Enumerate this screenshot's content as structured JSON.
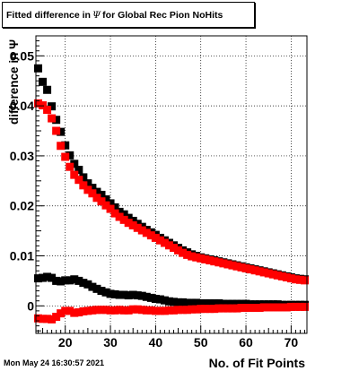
{
  "title_text": "Fitted difference in",
  "title_symbol": "Ψ",
  "title_suffix": "for Global Rec Pion NoHits",
  "timestamp": "Mon May 24 16:30:57 2021",
  "colors": {
    "black_series": "#000000",
    "red_series": "#ff0000",
    "grid": "#000000",
    "background": "#ffffff"
  },
  "chart_data": {
    "type": "scatter",
    "title": "Fitted difference in Ψ for Global Rec Pion NoHits",
    "xlabel": "No. of Fit Points",
    "ylabel": "difference in Ψ",
    "xlim": [
      13.5,
      73.5
    ],
    "ylim": [
      -0.0055,
      0.054
    ],
    "xticks": [
      20,
      30,
      40,
      50,
      60,
      70
    ],
    "xtick_labels": [
      "20",
      "30",
      "40",
      "50",
      "60",
      "70"
    ],
    "yticks": [
      0,
      0.01,
      0.02,
      0.03,
      0.04,
      0.05
    ],
    "ytick_labels": [
      "0",
      "0.01",
      "0.02",
      "0.03",
      "0.04",
      "0.05"
    ],
    "grid": true,
    "x": [
      14,
      15,
      16,
      17,
      18,
      19,
      20,
      21,
      22,
      23,
      24,
      25,
      26,
      27,
      28,
      29,
      30,
      31,
      32,
      33,
      34,
      35,
      36,
      37,
      38,
      39,
      40,
      41,
      42,
      43,
      44,
      45,
      46,
      47,
      48,
      49,
      50,
      51,
      52,
      53,
      54,
      55,
      56,
      57,
      58,
      59,
      60,
      61,
      62,
      63,
      64,
      65,
      66,
      67,
      68,
      69,
      70,
      71,
      72,
      73
    ],
    "series": [
      {
        "color": "#000000",
        "values": [
          0.0475,
          0.0448,
          0.0432,
          0.0399,
          0.0372,
          0.0348,
          0.0321,
          0.0301,
          0.0284,
          0.0272,
          0.0257,
          0.0245,
          0.0236,
          0.0228,
          0.0222,
          0.0213,
          0.0205,
          0.0197,
          0.0188,
          0.0183,
          0.0176,
          0.017,
          0.0164,
          0.0158,
          0.0152,
          0.0147,
          0.0142,
          0.0136,
          0.0131,
          0.0126,
          0.0121,
          0.0116,
          0.0111,
          0.0107,
          0.0103,
          0.01,
          0.0097,
          0.0095,
          0.0093,
          0.0091,
          0.0089,
          0.0087,
          0.0085,
          0.0083,
          0.0081,
          0.0079,
          0.0077,
          0.0075,
          0.0073,
          0.0071,
          0.0069,
          0.0067,
          0.0065,
          0.0063,
          0.0061,
          0.0059,
          0.0057,
          0.0055,
          0.0054,
          0.0053
        ]
      },
      {
        "color": "#ff0000",
        "values": [
          0.0405,
          0.0401,
          0.0392,
          0.0375,
          0.035,
          0.032,
          0.0298,
          0.0278,
          0.0262,
          0.0252,
          0.0241,
          0.0232,
          0.0225,
          0.0216,
          0.0209,
          0.0201,
          0.0194,
          0.0185,
          0.0178,
          0.0172,
          0.0166,
          0.0161,
          0.0156,
          0.0151,
          0.0146,
          0.0141,
          0.0136,
          0.0131,
          0.0126,
          0.0121,
          0.0116,
          0.0111,
          0.0106,
          0.0102,
          0.0099,
          0.0097,
          0.0095,
          0.0093,
          0.0091,
          0.0089,
          0.0087,
          0.0085,
          0.0083,
          0.0081,
          0.0079,
          0.0077,
          0.0075,
          0.0073,
          0.0071,
          0.0069,
          0.0067,
          0.0065,
          0.0063,
          0.0061,
          0.0059,
          0.0057,
          0.0055,
          0.0053,
          0.0052,
          0.0051
        ]
      },
      {
        "color": "#000000",
        "values": [
          0.0055,
          0.0056,
          0.0058,
          0.0056,
          0.005,
          0.0049,
          0.0051,
          0.0051,
          0.0053,
          0.005,
          0.0046,
          0.0043,
          0.0038,
          0.0034,
          0.003,
          0.0027,
          0.0024,
          0.0023,
          0.0022,
          0.0022,
          0.0021,
          0.0022,
          0.0021,
          0.002,
          0.0018,
          0.0016,
          0.0014,
          0.0013,
          0.0011,
          0.0009,
          0.0008,
          0.0007,
          0.0007,
          0.0006,
          0.0006,
          0.0006,
          0.0005,
          0.0005,
          0.0005,
          0.0005,
          0.0005,
          0.0004,
          0.0004,
          0.0004,
          0.0004,
          0.0004,
          0.0004,
          0.0003,
          0.0003,
          0.0003,
          0.0003,
          0.0003,
          0.0003,
          0.0003,
          0.0002,
          0.0002,
          0.0002,
          0.0002,
          0.0002,
          0.0002
        ]
      },
      {
        "color": "#ff0000",
        "values": [
          -0.0025,
          -0.0026,
          -0.0026,
          -0.0027,
          -0.0022,
          -0.0015,
          -0.001,
          -0.001,
          -0.0014,
          -0.0013,
          -0.0011,
          -0.001,
          -0.0009,
          -0.0008,
          -0.0008,
          -0.0008,
          -0.0009,
          -0.0009,
          -0.0008,
          -0.0009,
          -0.0009,
          -0.0007,
          -0.0007,
          -0.0008,
          -0.0009,
          -0.0009,
          -0.001,
          -0.001,
          -0.001,
          -0.0009,
          -0.0009,
          -0.0008,
          -0.0008,
          -0.0008,
          -0.0007,
          -0.0007,
          -0.0006,
          -0.0006,
          -0.0006,
          -0.0006,
          -0.0005,
          -0.0005,
          -0.0005,
          -0.0005,
          -0.0005,
          -0.0004,
          -0.0004,
          -0.0004,
          -0.0004,
          -0.0004,
          -0.0003,
          -0.0003,
          -0.0003,
          -0.0003,
          -0.0003,
          -0.0003,
          -0.0002,
          -0.0002,
          -0.0002,
          -0.0002
        ]
      }
    ]
  }
}
